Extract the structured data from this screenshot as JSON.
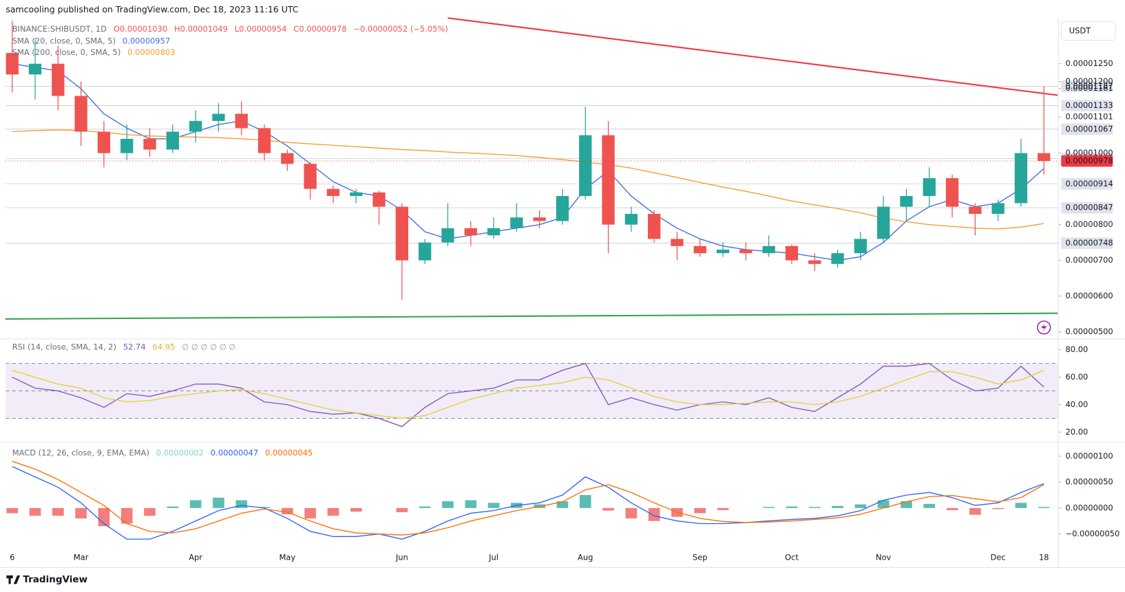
{
  "header": {
    "published": "samcooling published on TradingView.com, Dec 18, 2023 11:16 UTC",
    "currency": "USDT"
  },
  "legend": {
    "symbol": "BINANCE:SHIBUSDT, 1D",
    "ohlc": [
      "O0.00001030",
      "H0.00001049",
      "L0.00000954",
      "C0.00000978"
    ],
    "change": "−0.00000052 (−5.05%)"
  },
  "footer": {
    "brand": "TradingView"
  },
  "chart_data": [
    {
      "type": "candlestick",
      "categories": [
        "6",
        null,
        null,
        "Mar",
        null,
        null,
        null,
        null,
        "Apr",
        null,
        null,
        null,
        "May",
        null,
        null,
        null,
        null,
        "Jun",
        null,
        null,
        null,
        "Jul",
        null,
        null,
        null,
        "Aug",
        null,
        null,
        null,
        null,
        "Sep",
        null,
        null,
        null,
        "Oct",
        null,
        null,
        null,
        "Nov",
        null,
        null,
        null,
        null,
        "Dec",
        null,
        "18"
      ],
      "open": [
        1.28e-05,
        1.22e-05,
        1.25e-05,
        1.16e-05,
        1.06e-05,
        1e-05,
        1.04e-05,
        1.01e-05,
        1.06e-05,
        1.09e-05,
        1.11e-05,
        1.07e-05,
        1e-05,
        9.7e-06,
        9e-06,
        8.8e-06,
        8.9e-06,
        8.5e-06,
        7e-06,
        7.5e-06,
        7.9e-06,
        7.7e-06,
        7.9e-06,
        8.2e-06,
        8.1e-06,
        8.8e-06,
        1.05e-05,
        8e-06,
        8.3e-06,
        7.6e-06,
        7.4e-06,
        7.2e-06,
        7.3e-06,
        7.2e-06,
        7.4e-06,
        7e-06,
        6.9e-06,
        7.2e-06,
        7.6e-06,
        8.5e-06,
        8.8e-06,
        9.3e-06,
        8.5e-06,
        8.3e-06,
        8.6e-06,
        1e-05
      ],
      "high": [
        1.37e-05,
        1.32e-05,
        1.3e-05,
        1.2e-05,
        1.09e-05,
        1.08e-05,
        1.07e-05,
        1.08e-05,
        1.12e-05,
        1.14e-05,
        1.145e-05,
        1.08e-05,
        1.01e-05,
        9.75e-06,
        9.1e-06,
        9e-06,
        8.95e-06,
        8.6e-06,
        7.6e-06,
        8.6e-06,
        8.1e-06,
        8.2e-06,
        8.6e-06,
        8.4e-06,
        9e-06,
        1.13e-05,
        1.09e-05,
        8.5e-06,
        8.4e-06,
        7.8e-06,
        7.6e-06,
        7.5e-06,
        7.5e-06,
        7.7e-06,
        7.45e-06,
        7.2e-06,
        7.3e-06,
        7.8e-06,
        8.8e-06,
        9e-06,
        9.6e-06,
        9.4e-06,
        8.6e-06,
        8.7e-06,
        1.04e-05,
        1.187e-05
      ],
      "low": [
        1.17e-05,
        1.15e-05,
        1.12e-05,
        1.02e-05,
        9.6e-06,
        9.8e-06,
        9.9e-06,
        1e-05,
        1.03e-05,
        1.06e-05,
        1.05e-05,
        9.8e-06,
        9.5e-06,
        8.7e-06,
        8.6e-06,
        8.6e-06,
        8e-06,
        5.9e-06,
        6.9e-06,
        7.4e-06,
        7.4e-06,
        7.6e-06,
        7.8e-06,
        7.9e-06,
        8e-06,
        8.7e-06,
        7.2e-06,
        7.8e-06,
        7.5e-06,
        7e-06,
        7.1e-06,
        7.1e-06,
        7e-06,
        7.1e-06,
        6.9e-06,
        6.7e-06,
        6.8e-06,
        7e-06,
        7.5e-06,
        8.1e-06,
        8.5e-06,
        8.2e-06,
        7.7e-06,
        8.1e-06,
        8.5e-06,
        9.4e-06
      ],
      "close": [
        1.22e-05,
        1.25e-05,
        1.16e-05,
        1.06e-05,
        1e-05,
        1.04e-05,
        1.01e-05,
        1.06e-05,
        1.09e-05,
        1.11e-05,
        1.07e-05,
        1e-05,
        9.7e-06,
        9e-06,
        8.8e-06,
        8.9e-06,
        8.5e-06,
        7e-06,
        7.5e-06,
        7.9e-06,
        7.7e-06,
        7.9e-06,
        8.2e-06,
        8.1e-06,
        8.8e-06,
        1.05e-05,
        8e-06,
        8.3e-06,
        7.6e-06,
        7.4e-06,
        7.2e-06,
        7.3e-06,
        7.2e-06,
        7.4e-06,
        7e-06,
        6.9e-06,
        7.2e-06,
        7.6e-06,
        8.5e-06,
        8.8e-06,
        9.3e-06,
        8.5e-06,
        8.3e-06,
        8.6e-06,
        1e-05,
        9.78e-06
      ],
      "up_color": "#26a69a",
      "down_color": "#ef5350",
      "series": [
        {
          "name": "SMA (20, close, 0, SMA, 5)",
          "legend_value": "0.00000957",
          "color": "#3f6fe0",
          "values": [
            1.25e-05,
            1.24e-05,
            1.23e-05,
            1.18e-05,
            1.11e-05,
            1.07e-05,
            1.04e-05,
            1.04e-05,
            1.06e-05,
            1.08e-05,
            1.09e-05,
            1.06e-05,
            1.02e-05,
            9.7e-06,
            9.2e-06,
            8.9e-06,
            8.8e-06,
            8.4e-06,
            7.8e-06,
            7.6e-06,
            7.7e-06,
            7.8e-06,
            7.9e-06,
            8e-06,
            8.2e-06,
            9e-06,
            9.5e-06,
            8.8e-06,
            8.3e-06,
            7.9e-06,
            7.6e-06,
            7.4e-06,
            7.3e-06,
            7.25e-06,
            7.2e-06,
            7.1e-06,
            7e-06,
            7.1e-06,
            7.5e-06,
            8.1e-06,
            8.5e-06,
            8.7e-06,
            8.5e-06,
            8.6e-06,
            9e-06,
            9.57e-06
          ]
        },
        {
          "name": "SMA (200, close, 0, SMA, 5)",
          "legend_value": "0.00000803",
          "color": "#f59c2e",
          "values": [
            1.06e-05,
            1.063e-05,
            1.065e-05,
            1.063e-05,
            1.058e-05,
            1.052e-05,
            1.048e-05,
            1.046e-05,
            1.045e-05,
            1.043e-05,
            1.04e-05,
            1.036e-05,
            1.03e-05,
            1.026e-05,
            1.022e-05,
            1.018e-05,
            1.014e-05,
            1.01e-05,
            1.007e-05,
            1.003e-05,
            1e-05,
            9.97e-06,
            9.93e-06,
            9.88e-06,
            9.82e-06,
            9.75e-06,
            9.68e-06,
            9.58e-06,
            9.45e-06,
            9.32e-06,
            9.18e-06,
            9.05e-06,
            8.93e-06,
            8.8e-06,
            8.66e-06,
            8.55e-06,
            8.45e-06,
            8.33e-06,
            8.18e-06,
            8.08e-06,
            8e-06,
            7.95e-06,
            7.9e-06,
            7.88e-06,
            7.93e-06,
            8.03e-06
          ]
        }
      ],
      "trendlines": [
        {
          "color": "#f23645",
          "x": [
            19,
            45.6
          ],
          "values": [
            1.378e-05,
            1.162e-05
          ]
        },
        {
          "color": "#2fa84f",
          "x": [
            -0.3,
            45.6
          ],
          "values": [
            5.36e-06,
            5.52e-06
          ]
        }
      ],
      "levels": [
        {
          "value": 1.187e-05,
          "label": "0.00001187"
        },
        {
          "value": 1.133e-05,
          "label": "0.00001133"
        },
        {
          "value": 1.067e-05,
          "label": "0.00001067"
        },
        {
          "value": 9.85e-06,
          "label": "0.00000985"
        },
        {
          "value": 9.14e-06,
          "label": "0.00000914"
        },
        {
          "value": 8.47e-06,
          "label": "0.00000847"
        },
        {
          "value": 7.48e-06,
          "label": "0.00000748"
        }
      ],
      "last": {
        "value": 9.78e-06,
        "label": "0.00000978",
        "color": "#f23645"
      },
      "ylim": [
        4.86e-06,
        1.378e-05
      ],
      "yticks": [
        {
          "value": 1.25e-05,
          "label": "0.00001250"
        },
        {
          "value": 1.2e-05,
          "label": "0.00001200"
        },
        {
          "value": 1.181e-05,
          "label": "0.00001181"
        },
        {
          "value": 1.101e-05,
          "label": "0.00001101"
        },
        {
          "value": 1e-05,
          "label": "0.00001000"
        },
        {
          "value": 8e-06,
          "label": "0.00000800"
        },
        {
          "value": 7e-06,
          "label": "0.00000700"
        },
        {
          "value": 6e-06,
          "label": "0.00000600"
        },
        {
          "value": 5e-06,
          "label": "0.00000500"
        }
      ]
    },
    {
      "type": "line",
      "title": "RSI (14, close, SMA, 14, 2)",
      "extra": "∅ ∅ ∅ ∅ ∅ ∅",
      "series": [
        {
          "name": "RSI",
          "legend_value": "52.74",
          "color": "#7e57c2",
          "values": [
            60,
            52,
            50,
            45,
            38,
            48,
            46,
            50,
            55,
            55,
            52,
            42,
            40,
            35,
            33,
            34,
            30,
            24,
            38,
            48,
            50,
            52,
            58,
            58,
            65,
            70,
            40,
            45,
            40,
            36,
            40,
            42,
            40,
            45,
            38,
            35,
            45,
            55,
            68,
            68,
            70,
            58,
            50,
            52,
            68,
            52.74
          ]
        },
        {
          "name": "RSI-based MA",
          "legend_value": "64.95",
          "color": "#e3cf3c",
          "values": [
            65,
            60,
            55,
            52,
            45,
            42,
            43,
            46,
            48,
            50,
            51,
            48,
            44,
            40,
            36,
            34,
            32,
            30,
            32,
            38,
            44,
            48,
            52,
            54,
            56,
            60,
            58,
            52,
            46,
            42,
            40,
            40,
            41,
            42,
            42,
            40,
            42,
            46,
            52,
            58,
            64,
            64,
            60,
            55,
            58,
            64.95
          ]
        }
      ],
      "bands": [
        70,
        50,
        30
      ],
      "band_color": "#ede7f6",
      "ylim": [
        13.7,
        85.2
      ],
      "yticks": [
        {
          "value": 80,
          "label": "80.00"
        },
        {
          "value": 60,
          "label": "60.00"
        },
        {
          "value": 40,
          "label": "40.00"
        },
        {
          "value": 20,
          "label": "20.00"
        }
      ]
    },
    {
      "type": "macd",
      "title": "MACD (12, 26, close, 9, EMA, EMA)",
      "histogram": {
        "legend_value": "0.00000002",
        "up_color": "#26a69a",
        "down_color": "#ef5350",
        "values": [
          -1e-07,
          -1.5e-07,
          -1.5e-07,
          -2e-07,
          -3.5e-07,
          -3e-07,
          -1.5e-07,
          3e-08,
          1.5e-07,
          2e-07,
          1.5e-07,
          2e-08,
          -1.2e-07,
          -2e-07,
          -1.5e-07,
          -7e-08,
          0,
          -8e-08,
          3e-08,
          1.3e-07,
          1.5e-07,
          1e-07,
          1e-07,
          7e-08,
          1.3e-07,
          2.5e-07,
          -5e-08,
          -2e-07,
          -2.5e-07,
          -1.7e-07,
          -1e-07,
          -4e-08,
          0,
          2e-08,
          3e-08,
          2e-08,
          4e-08,
          7e-08,
          1.5e-07,
          1.3e-07,
          8e-08,
          -4e-08,
          -1.3e-07,
          -2e-08,
          1e-07,
          2e-08
        ]
      },
      "series": [
        {
          "name": "MACD",
          "legend_value": "0.00000047",
          "color": "#2962ff",
          "values": [
            8e-07,
            6e-07,
            4e-07,
            1e-07,
            -3e-07,
            -6e-07,
            -6e-07,
            -4.5e-07,
            -2.5e-07,
            -5e-08,
            5e-08,
            0,
            -2e-07,
            -4.5e-07,
            -5.5e-07,
            -5.5e-07,
            -5e-07,
            -6e-07,
            -4.5e-07,
            -2.5e-07,
            -1e-07,
            -5e-08,
            5e-08,
            1e-07,
            2.5e-07,
            6e-07,
            4e-07,
            1e-07,
            -1.5e-07,
            -2.5e-07,
            -3e-07,
            -3e-07,
            -2.8e-07,
            -2.5e-07,
            -2.2e-07,
            -2e-07,
            -1.5e-07,
            -5e-08,
            1.5e-07,
            2.5e-07,
            3e-07,
            2e-07,
            5e-08,
            1e-07,
            3e-07,
            4.7e-07
          ]
        },
        {
          "name": "Signal",
          "legend_value": "0.00000045",
          "color": "#ff6d00",
          "values": [
            9e-07,
            7.5e-07,
            5.5e-07,
            3e-07,
            5e-08,
            -3e-07,
            -4.5e-07,
            -4.8e-07,
            -4e-07,
            -2.5e-07,
            -1e-07,
            -2e-08,
            -8e-08,
            -2.5e-07,
            -4e-07,
            -4.8e-07,
            -5e-07,
            -5.2e-07,
            -4.8e-07,
            -3.8e-07,
            -2.5e-07,
            -1.5e-07,
            -5e-08,
            3e-08,
            1.2e-07,
            3.5e-07,
            4.5e-07,
            3e-07,
            1e-07,
            -8e-08,
            -2e-07,
            -2.6e-07,
            -2.8e-07,
            -2.7e-07,
            -2.5e-07,
            -2.2e-07,
            -1.9e-07,
            -1.2e-07,
            0,
            1.2e-07,
            2.2e-07,
            2.4e-07,
            1.8e-07,
            1.2e-07,
            2e-07,
            4.5e-07
          ]
        }
      ],
      "ylim": [
        -1.12e-06,
        1.2e-06
      ],
      "yticks": [
        {
          "value": 1e-06,
          "label": "0.00000100"
        },
        {
          "value": 5e-07,
          "label": "0.00000050"
        },
        {
          "value": 0,
          "label": "0.00000000"
        },
        {
          "value": -5e-07,
          "label": "−0.00000050"
        }
      ]
    }
  ]
}
